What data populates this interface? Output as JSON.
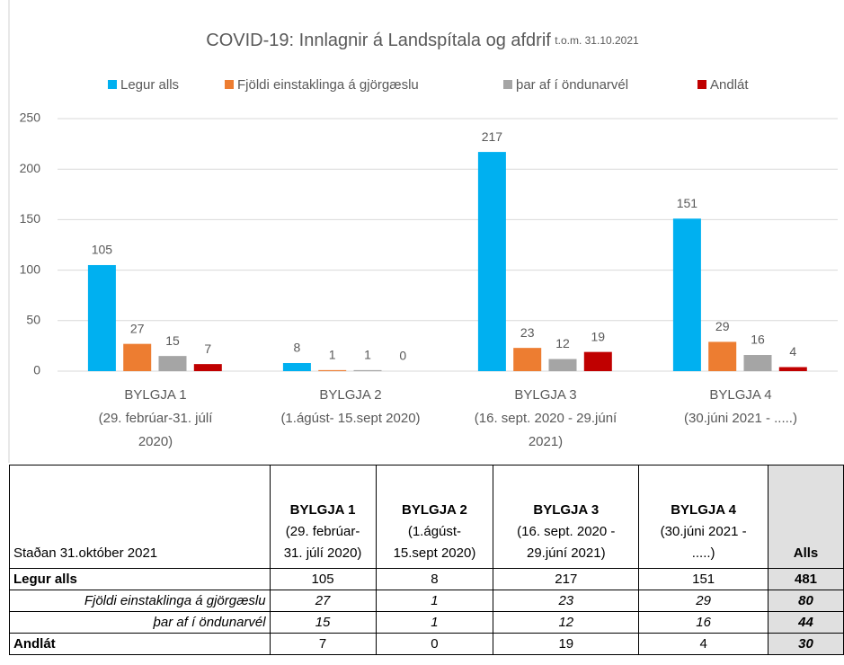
{
  "chart_data": {
    "type": "bar",
    "title": "COVID-19: Innlagnir á Landspítala og afdrif",
    "subtitle": "t.o.m. 31.10.2021",
    "categories": [
      "BYLGJA 1\n(29. febrúar-31. júlí\n2020)",
      "BYLGJA 2\n(1.ágúst- 15.sept 2020)",
      "BYLGJA 3\n(16. sept. 2020 - 29.júní\n2021)",
      "BYLGJA 4\n(30.júni 2021 - .....)"
    ],
    "series": [
      {
        "name": "Legur alls",
        "color": "#00b0f0",
        "values": [
          105,
          8,
          217,
          151
        ]
      },
      {
        "name": "Fjöldi einstaklinga á gjörgæslu",
        "color": "#ed7d31",
        "values": [
          27,
          1,
          23,
          29
        ]
      },
      {
        "name": "þar af í öndunarvél",
        "color": "#a5a5a5",
        "values": [
          15,
          1,
          12,
          16
        ]
      },
      {
        "name": "Andlát",
        "color": "#c00000",
        "values": [
          7,
          0,
          19,
          4
        ]
      }
    ],
    "ylim": [
      0,
      250
    ],
    "yticks": [
      0,
      50,
      100,
      150,
      200,
      250
    ],
    "grid": true,
    "legend": "top",
    "data_labels": true
  },
  "table": {
    "corner": "Staðan 31.október 2021",
    "columns": [
      {
        "name": "BYLGJA 1",
        "period": "(29. febrúar-\n31. júlí 2020)"
      },
      {
        "name": "BYLGJA 2",
        "period": "(1.ágúst-\n15.sept 2020)"
      },
      {
        "name": "BYLGJA 3",
        "period": "(16. sept. 2020 -\n29.júní 2021)"
      },
      {
        "name": "BYLGJA 4",
        "period": "(30.júni 2021 -\n.....)"
      },
      {
        "name": "Alls",
        "period": null
      }
    ],
    "rows": [
      [
        "Legur alls",
        105,
        8,
        217,
        151,
        481
      ],
      [
        "Fjöldi einstaklinga á gjörgæslu",
        27,
        1,
        23,
        29,
        80
      ],
      [
        "þar af í öndunarvél",
        15,
        1,
        12,
        16,
        44
      ],
      [
        "Andlát",
        7,
        0,
        19,
        4,
        30
      ]
    ]
  }
}
